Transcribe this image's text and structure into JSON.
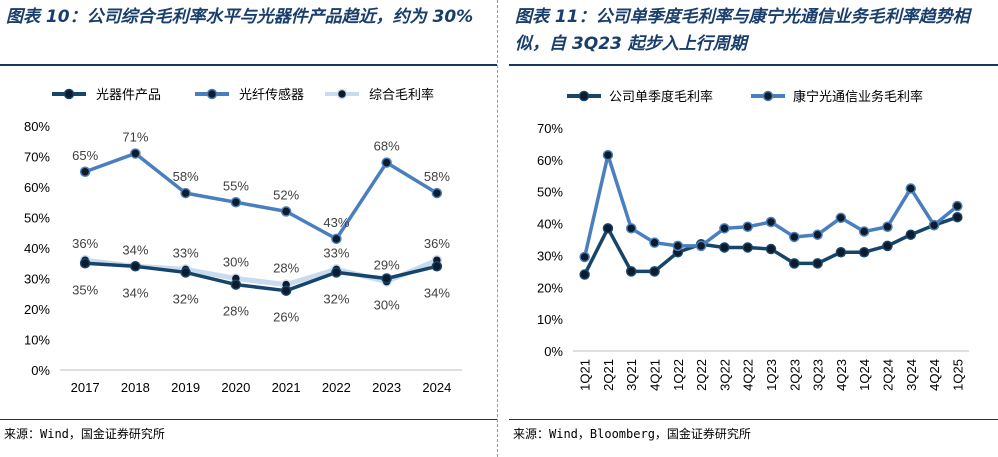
{
  "left": {
    "title": "图表 10：公司综合毛利率水平与光器件产品趋近，约为 30%",
    "source": "来源：Wind，国金证券研究所",
    "chart_data": {
      "type": "line",
      "categories": [
        "2017",
        "2018",
        "2019",
        "2020",
        "2021",
        "2022",
        "2023",
        "2024"
      ],
      "y_ticks": [
        "0%",
        "10%",
        "20%",
        "30%",
        "40%",
        "50%",
        "60%",
        "70%",
        "80%"
      ],
      "ylim": [
        0,
        80
      ],
      "series": [
        {
          "name": "光器件产品",
          "color": "#17456a",
          "values": [
            35,
            34,
            32,
            28,
            26,
            32,
            30,
            34
          ],
          "labels": [
            "35%",
            "34%",
            "32%",
            "28%",
            "26%",
            "32%",
            "30%",
            "34%"
          ],
          "label_pos": "below"
        },
        {
          "name": "光纤传感器",
          "color": "#4a7fbf",
          "values": [
            65,
            71,
            58,
            55,
            52,
            43,
            68,
            58
          ],
          "labels": [
            "65%",
            "71%",
            "58%",
            "55%",
            "52%",
            "43%",
            "68%",
            "58%"
          ],
          "label_pos": "above"
        },
        {
          "name": "综合毛利率",
          "color": "#c9dcef",
          "values": [
            36,
            34,
            33,
            30,
            28,
            33,
            29,
            36
          ],
          "labels": [
            "36%",
            "34%",
            "33%",
            "30%",
            "28%",
            "33%",
            "29%",
            "36%"
          ],
          "label_pos": "above"
        }
      ]
    }
  },
  "right": {
    "title": "图表 11：公司单季度毛利率与康宁光通信业务毛利率趋势相似，自 3Q23 起步入上行周期",
    "source": "来源：Wind，Bloomberg，国金证券研究所",
    "chart_data": {
      "type": "line",
      "categories": [
        "1Q21",
        "2Q21",
        "3Q21",
        "4Q21",
        "1Q22",
        "2Q22",
        "3Q22",
        "4Q22",
        "1Q23",
        "2Q23",
        "3Q23",
        "4Q23",
        "1Q24",
        "2Q24",
        "3Q24",
        "4Q24",
        "1Q25"
      ],
      "y_ticks": [
        "0%",
        "10%",
        "20%",
        "30%",
        "40%",
        "50%",
        "60%",
        "70%"
      ],
      "ylim": [
        0,
        70
      ],
      "series": [
        {
          "name": "公司单季度毛利率",
          "color": "#17456a",
          "values": [
            24,
            38.5,
            25,
            25,
            31,
            33.5,
            32.5,
            32.5,
            32,
            27.5,
            27.5,
            31,
            31,
            33,
            36.5,
            39.5,
            42
          ]
        },
        {
          "name": "康宁光通信业务毛利率",
          "color": "#4a7fbf",
          "values": [
            29.5,
            61.5,
            38.5,
            34,
            33,
            33,
            38.5,
            39,
            40.5,
            35.8,
            36.5,
            41.8,
            37.5,
            39,
            51,
            39.5,
            45.5
          ]
        }
      ]
    }
  }
}
